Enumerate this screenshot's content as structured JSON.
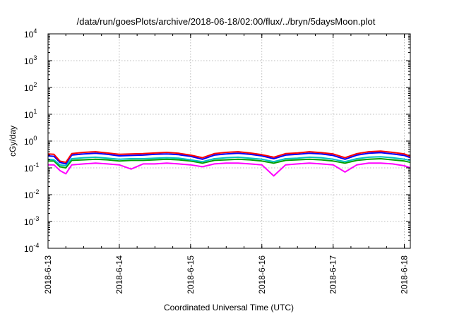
{
  "chart_data": {
    "type": "line",
    "title": "/data/run/goesPlots/archive/2018-06-18/02:00/flux/../bryn/5daysMoon.plot",
    "xlabel": "Coordinated Universal Time (UTC)",
    "ylabel": "cGy/day",
    "x_range": [
      "2018-06-13T00:00",
      "2018-06-18T02:00"
    ],
    "yscale": "log",
    "ylim": [
      0.0001,
      10000
    ],
    "grid": true,
    "x_ticks": [
      "2018-6-13",
      "2018-6-14",
      "2018-6-15",
      "2018-6-16",
      "2018-6-17",
      "2018-6-18"
    ],
    "y_ticks": [
      {
        "base": "10",
        "exp": "-4",
        "value": 0.0001
      },
      {
        "base": "10",
        "exp": "-3",
        "value": 0.001
      },
      {
        "base": "10",
        "exp": "-2",
        "value": 0.01
      },
      {
        "base": "10",
        "exp": "-1",
        "value": 0.1
      },
      {
        "base": "10",
        "exp": "0",
        "value": 1
      },
      {
        "base": "10",
        "exp": "1",
        "value": 10
      },
      {
        "base": "10",
        "exp": "2",
        "value": 100
      },
      {
        "base": "10",
        "exp": "3",
        "value": 1000
      },
      {
        "base": "10",
        "exp": "4",
        "value": 10000
      }
    ],
    "x": [
      "2018-06-13T00:00",
      "2018-06-13T02:00",
      "2018-06-13T04:00",
      "2018-06-13T06:00",
      "2018-06-13T08:00",
      "2018-06-13T12:00",
      "2018-06-13T16:00",
      "2018-06-13T20:00",
      "2018-06-14T00:00",
      "2018-06-14T04:00",
      "2018-06-14T08:00",
      "2018-06-14T12:00",
      "2018-06-14T16:00",
      "2018-06-14T20:00",
      "2018-06-15T00:00",
      "2018-06-15T04:00",
      "2018-06-15T08:00",
      "2018-06-15T12:00",
      "2018-06-15T16:00",
      "2018-06-15T20:00",
      "2018-06-16T00:00",
      "2018-06-16T04:00",
      "2018-06-16T08:00",
      "2018-06-16T12:00",
      "2018-06-16T16:00",
      "2018-06-16T20:00",
      "2018-06-17T00:00",
      "2018-06-17T04:00",
      "2018-06-17T08:00",
      "2018-06-17T12:00",
      "2018-06-17T16:00",
      "2018-06-17T20:00",
      "2018-06-18T00:00",
      "2018-06-18T02:00"
    ],
    "series": [
      {
        "color": "#ff0000",
        "values": [
          0.33,
          0.32,
          0.18,
          0.16,
          0.34,
          0.38,
          0.4,
          0.36,
          0.32,
          0.33,
          0.34,
          0.36,
          0.38,
          0.35,
          0.3,
          0.24,
          0.34,
          0.38,
          0.4,
          0.36,
          0.31,
          0.25,
          0.34,
          0.36,
          0.4,
          0.37,
          0.33,
          0.24,
          0.34,
          0.4,
          0.42,
          0.38,
          0.33,
          0.27
        ]
      },
      {
        "color": "#0000ff",
        "values": [
          0.28,
          0.27,
          0.16,
          0.14,
          0.3,
          0.33,
          0.35,
          0.32,
          0.28,
          0.29,
          0.3,
          0.32,
          0.33,
          0.31,
          0.27,
          0.21,
          0.3,
          0.33,
          0.35,
          0.32,
          0.28,
          0.22,
          0.3,
          0.32,
          0.35,
          0.33,
          0.29,
          0.21,
          0.3,
          0.35,
          0.37,
          0.33,
          0.29,
          0.24
        ]
      },
      {
        "color": "#00c0c0",
        "values": [
          0.21,
          0.2,
          0.13,
          0.12,
          0.22,
          0.24,
          0.25,
          0.23,
          0.21,
          0.22,
          0.22,
          0.23,
          0.24,
          0.23,
          0.2,
          0.17,
          0.22,
          0.24,
          0.25,
          0.23,
          0.21,
          0.17,
          0.22,
          0.23,
          0.25,
          0.24,
          0.21,
          0.17,
          0.22,
          0.25,
          0.26,
          0.24,
          0.21,
          0.19
        ]
      },
      {
        "color": "#00a000",
        "values": [
          0.18,
          0.18,
          0.11,
          0.1,
          0.19,
          0.2,
          0.21,
          0.2,
          0.18,
          0.19,
          0.19,
          0.2,
          0.21,
          0.2,
          0.18,
          0.15,
          0.19,
          0.2,
          0.21,
          0.2,
          0.18,
          0.15,
          0.19,
          0.2,
          0.21,
          0.2,
          0.18,
          0.15,
          0.19,
          0.21,
          0.22,
          0.2,
          0.18,
          0.16
        ]
      },
      {
        "color": "#ff00ff",
        "values": [
          0.13,
          0.13,
          0.08,
          0.06,
          0.13,
          0.14,
          0.15,
          0.14,
          0.13,
          0.09,
          0.14,
          0.14,
          0.15,
          0.14,
          0.13,
          0.11,
          0.14,
          0.15,
          0.15,
          0.14,
          0.13,
          0.05,
          0.13,
          0.14,
          0.15,
          0.14,
          0.13,
          0.07,
          0.13,
          0.15,
          0.15,
          0.14,
          0.12,
          0.1
        ]
      }
    ]
  }
}
